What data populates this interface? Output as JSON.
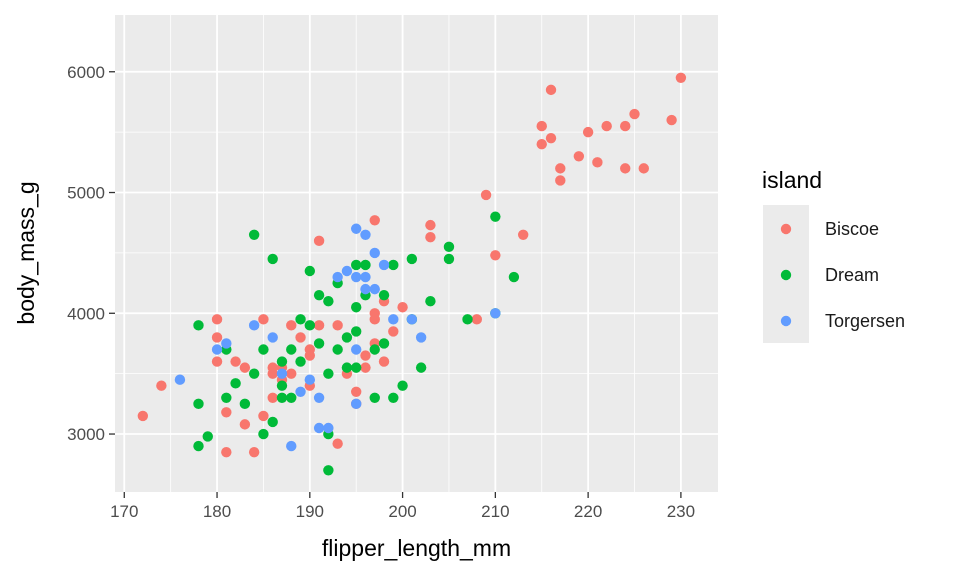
{
  "chart_data": {
    "type": "scatter",
    "xlabel": "flipper_length_mm",
    "ylabel": "body_mass_g",
    "xlim": [
      169,
      234
    ],
    "ylim": [
      2520,
      6470
    ],
    "xticks": [
      170,
      180,
      190,
      200,
      210,
      220,
      230
    ],
    "yticks": [
      3000,
      4000,
      5000,
      6000
    ],
    "grid": true,
    "legend": {
      "title": "island",
      "position": "right",
      "entries": [
        "Biscoe",
        "Dream",
        "Torgersen"
      ]
    },
    "series": [
      {
        "name": "Biscoe",
        "color": "#F8766D",
        "points": [
          [
            172,
            3150
          ],
          [
            174,
            3400
          ],
          [
            180,
            3800
          ],
          [
            180,
            3950
          ],
          [
            180,
            3600
          ],
          [
            181,
            3180
          ],
          [
            181,
            2850
          ],
          [
            182,
            3600
          ],
          [
            183,
            3080
          ],
          [
            183,
            3550
          ],
          [
            184,
            2850
          ],
          [
            185,
            3950
          ],
          [
            185,
            3150
          ],
          [
            186,
            3550
          ],
          [
            186,
            3500
          ],
          [
            186,
            3300
          ],
          [
            187,
            3550
          ],
          [
            187,
            3450
          ],
          [
            188,
            3900
          ],
          [
            188,
            3500
          ],
          [
            189,
            3800
          ],
          [
            190,
            3700
          ],
          [
            190,
            3650
          ],
          [
            190,
            3400
          ],
          [
            191,
            4600
          ],
          [
            191,
            3900
          ],
          [
            193,
            3900
          ],
          [
            193,
            2920
          ],
          [
            194,
            3500
          ],
          [
            195,
            3250
          ],
          [
            195,
            3350
          ],
          [
            196,
            3650
          ],
          [
            196,
            3550
          ],
          [
            197,
            4770
          ],
          [
            197,
            4000
          ],
          [
            197,
            3950
          ],
          [
            197,
            3750
          ],
          [
            198,
            4100
          ],
          [
            198,
            3600
          ],
          [
            199,
            3850
          ],
          [
            200,
            4050
          ],
          [
            203,
            4730
          ],
          [
            203,
            4630
          ],
          [
            208,
            3950
          ],
          [
            209,
            4980
          ],
          [
            210,
            4480
          ],
          [
            213,
            4650
          ],
          [
            215,
            5550
          ],
          [
            215,
            5400
          ],
          [
            216,
            5850
          ],
          [
            216,
            5450
          ],
          [
            217,
            5100
          ],
          [
            217,
            5200
          ],
          [
            219,
            5300
          ],
          [
            220,
            5500
          ],
          [
            221,
            5250
          ],
          [
            222,
            5550
          ],
          [
            224,
            5550
          ],
          [
            224,
            5200
          ],
          [
            225,
            5650
          ],
          [
            226,
            5200
          ],
          [
            229,
            5600
          ],
          [
            230,
            5950
          ]
        ]
      },
      {
        "name": "Dream",
        "color": "#00BA38",
        "points": [
          [
            178,
            3900
          ],
          [
            178,
            3250
          ],
          [
            178,
            2900
          ],
          [
            179,
            2980
          ],
          [
            181,
            3700
          ],
          [
            181,
            3300
          ],
          [
            182,
            3420
          ],
          [
            183,
            3250
          ],
          [
            184,
            4650
          ],
          [
            184,
            3500
          ],
          [
            185,
            3700
          ],
          [
            185,
            3000
          ],
          [
            186,
            4450
          ],
          [
            186,
            3100
          ],
          [
            187,
            3600
          ],
          [
            187,
            3400
          ],
          [
            187,
            3300
          ],
          [
            188,
            3700
          ],
          [
            188,
            3300
          ],
          [
            189,
            3950
          ],
          [
            189,
            3600
          ],
          [
            190,
            4350
          ],
          [
            190,
            3900
          ],
          [
            191,
            4150
          ],
          [
            191,
            3750
          ],
          [
            192,
            4100
          ],
          [
            192,
            3500
          ],
          [
            192,
            2700
          ],
          [
            192,
            3000
          ],
          [
            193,
            4250
          ],
          [
            193,
            3700
          ],
          [
            194,
            3800
          ],
          [
            194,
            3550
          ],
          [
            195,
            4400
          ],
          [
            195,
            4050
          ],
          [
            195,
            3850
          ],
          [
            195,
            3550
          ],
          [
            196,
            4400
          ],
          [
            196,
            4150
          ],
          [
            197,
            3700
          ],
          [
            197,
            3300
          ],
          [
            198,
            4150
          ],
          [
            198,
            3750
          ],
          [
            199,
            4400
          ],
          [
            199,
            3300
          ],
          [
            200,
            3400
          ],
          [
            201,
            4450
          ],
          [
            201,
            3950
          ],
          [
            202,
            3550
          ],
          [
            203,
            4100
          ],
          [
            205,
            4550
          ],
          [
            205,
            4450
          ],
          [
            207,
            3950
          ],
          [
            210,
            4800
          ],
          [
            212,
            4300
          ],
          [
            210,
            4000
          ]
        ]
      },
      {
        "name": "Torgersen",
        "color": "#619CFF",
        "points": [
          [
            176,
            3450
          ],
          [
            180,
            3700
          ],
          [
            181,
            3750
          ],
          [
            184,
            3900
          ],
          [
            186,
            3800
          ],
          [
            187,
            3500
          ],
          [
            188,
            2900
          ],
          [
            189,
            3350
          ],
          [
            190,
            3450
          ],
          [
            191,
            3050
          ],
          [
            191,
            3300
          ],
          [
            192,
            3050
          ],
          [
            193,
            4300
          ],
          [
            194,
            4350
          ],
          [
            195,
            4700
          ],
          [
            195,
            4300
          ],
          [
            195,
            3700
          ],
          [
            195,
            3250
          ],
          [
            196,
            4650
          ],
          [
            196,
            4300
          ],
          [
            196,
            4200
          ],
          [
            197,
            4500
          ],
          [
            197,
            4200
          ],
          [
            198,
            4400
          ],
          [
            199,
            3950
          ],
          [
            201,
            3950
          ],
          [
            202,
            3800
          ],
          [
            210,
            4000
          ]
        ]
      }
    ]
  }
}
